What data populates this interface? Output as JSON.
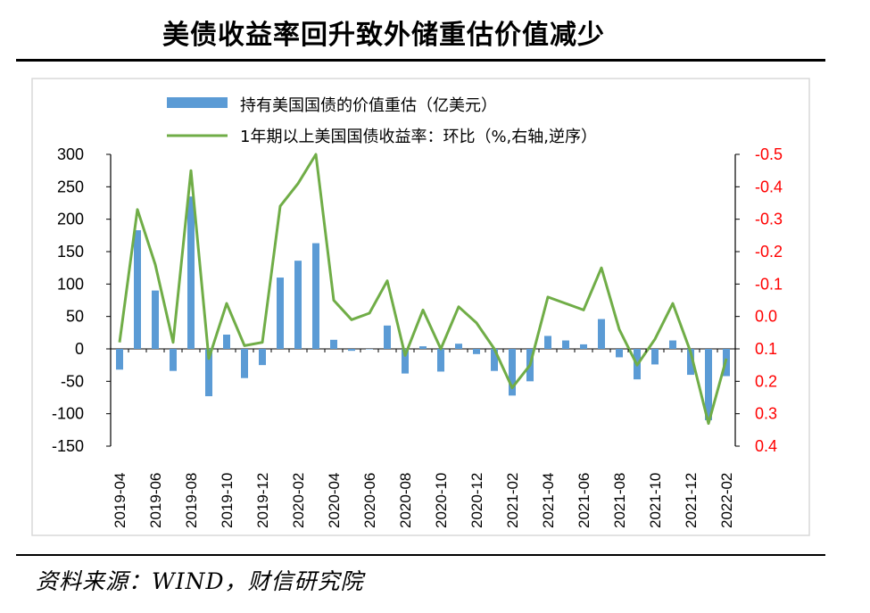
{
  "title": "美债收益率回升致外储重估价值减少",
  "source": "资料来源：WIND，财信研究院",
  "colors": {
    "bar": "#5B9BD5",
    "line": "#70AD47",
    "right_axis_text": "#FF0000"
  },
  "chart_data": {
    "type": "bar+line",
    "legend": [
      "持有美国国债的价值重估（亿美元）",
      "1年期以上美国国债收益率：环比（%,右轴,逆序）"
    ],
    "x": [
      "2019-04",
      "2019-05",
      "2019-06",
      "2019-07",
      "2019-08",
      "2019-09",
      "2019-10",
      "2019-11",
      "2019-12",
      "2020-01",
      "2020-02",
      "2020-03",
      "2020-04",
      "2020-05",
      "2020-06",
      "2020-07",
      "2020-08",
      "2020-09",
      "2020-10",
      "2020-11",
      "2020-12",
      "2021-01",
      "2021-02",
      "2021-03",
      "2021-04",
      "2021-05",
      "2021-06",
      "2021-07",
      "2021-08",
      "2021-09",
      "2021-10",
      "2021-11",
      "2021-12",
      "2022-01",
      "2022-02"
    ],
    "x_tick_labels": [
      "2019-04",
      "2019-06",
      "2019-08",
      "2019-10",
      "2019-12",
      "2020-02",
      "2020-04",
      "2020-06",
      "2020-08",
      "2020-10",
      "2020-12",
      "2021-02",
      "2021-04",
      "2021-06",
      "2021-08",
      "2021-10",
      "2021-12",
      "2022-02"
    ],
    "series": [
      {
        "name": "持有美国国债的价值重估（亿美元）",
        "axis": "left",
        "type": "bar",
        "values": [
          -32,
          183,
          90,
          -34,
          235,
          -73,
          22,
          -45,
          -25,
          110,
          136,
          163,
          14,
          -3,
          0,
          36,
          -38,
          4,
          -35,
          8,
          -8,
          -34,
          -72,
          -50,
          20,
          13,
          7,
          46,
          -13,
          -47,
          -24,
          13,
          -40,
          -110,
          -42
        ]
      },
      {
        "name": "1年期以上美国国债收益率：环比（%,右轴,逆序）",
        "axis": "right",
        "type": "line",
        "values": [
          0.08,
          -0.33,
          -0.16,
          0.08,
          -0.45,
          0.13,
          -0.04,
          0.09,
          0.08,
          -0.34,
          -0.41,
          -0.5,
          -0.05,
          0.01,
          -0.01,
          -0.11,
          0.12,
          -0.02,
          0.1,
          -0.03,
          0.02,
          0.1,
          0.22,
          0.15,
          -0.06,
          -0.04,
          -0.02,
          -0.15,
          0.04,
          0.15,
          0.07,
          -0.04,
          0.11,
          0.33,
          0.13
        ]
      }
    ],
    "left_axis": {
      "min": -150,
      "max": 300,
      "ticks": [
        300,
        250,
        200,
        150,
        100,
        50,
        0,
        -50,
        -100,
        -150
      ]
    },
    "right_axis": {
      "min": -0.5,
      "max": 0.4,
      "inverted": true,
      "tick_labels": [
        "-0.5",
        "-0.4",
        "-0.3",
        "-0.2",
        "-0.1",
        "0.0",
        "0.1",
        "0.2",
        "0.3",
        "0.4"
      ]
    }
  }
}
